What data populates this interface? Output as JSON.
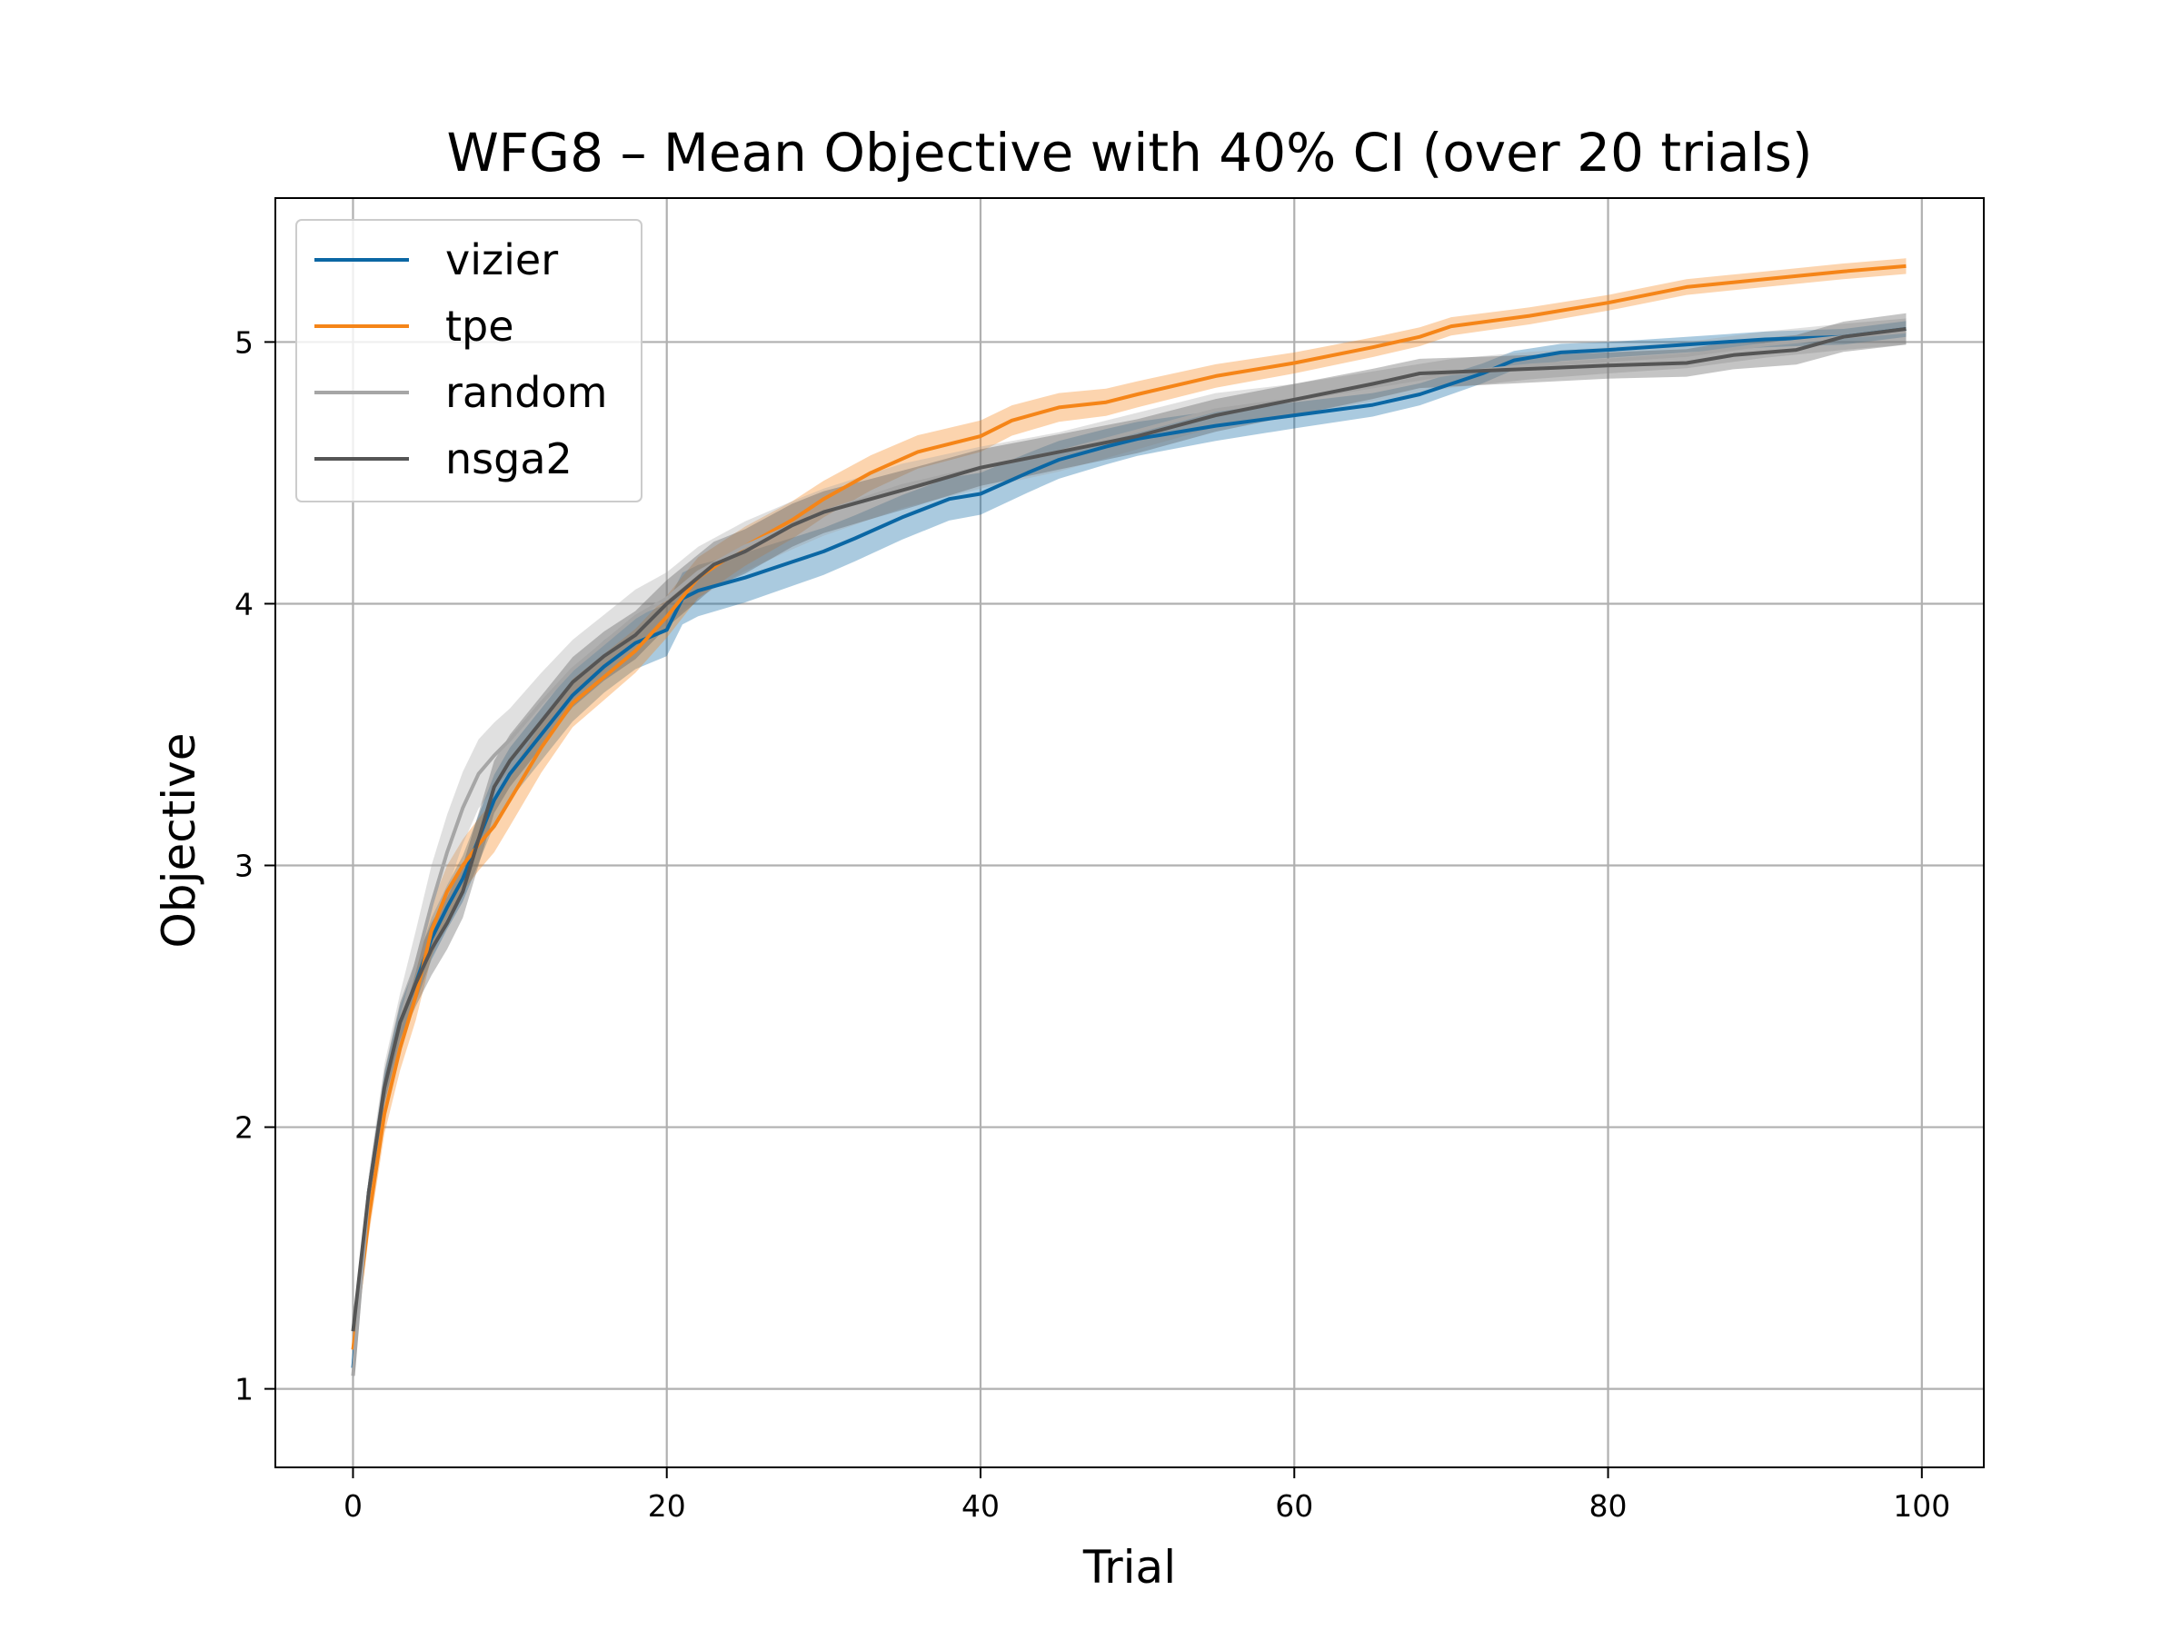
{
  "chart_data": {
    "type": "line",
    "title": "WFG8 – Mean Objective with 40% CI (over 20 trials)",
    "xlabel": "Trial",
    "ylabel": "Objective",
    "xlim": [
      -4.95,
      103.95
    ],
    "ylim": [
      0.7,
      5.55
    ],
    "xticks": [
      "0",
      "20",
      "40",
      "60",
      "80",
      "100"
    ],
    "yticks": [
      "1",
      "2",
      "3",
      "4",
      "5"
    ],
    "grid": true,
    "legend_position": "top-left",
    "band": "40% CI",
    "series": [
      {
        "name": "vizier",
        "color": "#0b67a4",
        "points": [
          [
            0,
            1.08
          ],
          [
            1,
            1.75
          ],
          [
            2,
            2.15
          ],
          [
            3,
            2.4
          ],
          [
            4,
            2.55
          ],
          [
            5,
            2.72
          ],
          [
            6,
            2.84
          ],
          [
            7,
            2.95
          ],
          [
            8,
            3.1
          ],
          [
            9,
            3.25
          ],
          [
            10,
            3.35
          ],
          [
            12,
            3.5
          ],
          [
            14,
            3.65
          ],
          [
            16,
            3.76
          ],
          [
            18,
            3.85
          ],
          [
            20,
            3.9
          ],
          [
            21,
            4.02
          ],
          [
            22,
            4.05
          ],
          [
            25,
            4.1
          ],
          [
            28,
            4.16
          ],
          [
            30,
            4.2
          ],
          [
            32,
            4.25
          ],
          [
            35,
            4.33
          ],
          [
            38,
            4.4
          ],
          [
            40,
            4.42
          ],
          [
            43,
            4.5
          ],
          [
            45,
            4.55
          ],
          [
            48,
            4.6
          ],
          [
            50,
            4.63
          ],
          [
            55,
            4.68
          ],
          [
            60,
            4.72
          ],
          [
            65,
            4.76
          ],
          [
            68,
            4.8
          ],
          [
            70,
            4.84
          ],
          [
            72,
            4.88
          ],
          [
            74,
            4.93
          ],
          [
            77,
            4.96
          ],
          [
            80,
            4.97
          ],
          [
            85,
            4.99
          ],
          [
            90,
            5.01
          ],
          [
            95,
            5.02
          ],
          [
            99,
            5.05
          ]
        ],
        "band_halfwidth": [
          [
            0,
            0.04
          ],
          [
            5,
            0.08
          ],
          [
            10,
            0.1
          ],
          [
            20,
            0.1
          ],
          [
            40,
            0.08
          ],
          [
            60,
            0.05
          ],
          [
            80,
            0.03
          ],
          [
            99,
            0.03
          ]
        ]
      },
      {
        "name": "tpe",
        "color": "#f58518",
        "points": [
          [
            0,
            1.15
          ],
          [
            1,
            1.65
          ],
          [
            2,
            2.05
          ],
          [
            3,
            2.3
          ],
          [
            4,
            2.5
          ],
          [
            5,
            2.75
          ],
          [
            6,
            2.9
          ],
          [
            7,
            3.0
          ],
          [
            8,
            3.08
          ],
          [
            9,
            3.15
          ],
          [
            10,
            3.25
          ],
          [
            12,
            3.45
          ],
          [
            14,
            3.62
          ],
          [
            16,
            3.72
          ],
          [
            18,
            3.82
          ],
          [
            20,
            3.95
          ],
          [
            22,
            4.1
          ],
          [
            25,
            4.22
          ],
          [
            28,
            4.32
          ],
          [
            30,
            4.4
          ],
          [
            33,
            4.5
          ],
          [
            36,
            4.58
          ],
          [
            40,
            4.64
          ],
          [
            42,
            4.7
          ],
          [
            45,
            4.75
          ],
          [
            48,
            4.77
          ],
          [
            50,
            4.8
          ],
          [
            55,
            4.87
          ],
          [
            60,
            4.92
          ],
          [
            65,
            4.98
          ],
          [
            68,
            5.02
          ],
          [
            70,
            5.06
          ],
          [
            75,
            5.1
          ],
          [
            80,
            5.15
          ],
          [
            85,
            5.21
          ],
          [
            90,
            5.24
          ],
          [
            95,
            5.27
          ],
          [
            99,
            5.29
          ]
        ],
        "band_halfwidth": [
          [
            0,
            0.06
          ],
          [
            5,
            0.1
          ],
          [
            10,
            0.1
          ],
          [
            20,
            0.08
          ],
          [
            40,
            0.06
          ],
          [
            60,
            0.04
          ],
          [
            80,
            0.03
          ],
          [
            99,
            0.03
          ]
        ]
      },
      {
        "name": "random",
        "color": "#a6a6a6",
        "points": [
          [
            0,
            1.05
          ],
          [
            1,
            1.75
          ],
          [
            2,
            2.15
          ],
          [
            3,
            2.4
          ],
          [
            4,
            2.62
          ],
          [
            5,
            2.85
          ],
          [
            6,
            3.05
          ],
          [
            7,
            3.22
          ],
          [
            8,
            3.35
          ],
          [
            9,
            3.42
          ],
          [
            10,
            3.48
          ],
          [
            12,
            3.62
          ],
          [
            14,
            3.75
          ],
          [
            16,
            3.85
          ],
          [
            18,
            3.95
          ],
          [
            20,
            4.02
          ],
          [
            22,
            4.12
          ],
          [
            25,
            4.22
          ],
          [
            28,
            4.3
          ],
          [
            30,
            4.35
          ],
          [
            35,
            4.45
          ],
          [
            40,
            4.52
          ],
          [
            45,
            4.58
          ],
          [
            50,
            4.66
          ],
          [
            55,
            4.74
          ],
          [
            60,
            4.78
          ],
          [
            65,
            4.83
          ],
          [
            70,
            4.88
          ],
          [
            75,
            4.91
          ],
          [
            80,
            4.93
          ],
          [
            85,
            4.95
          ],
          [
            90,
            4.99
          ],
          [
            95,
            5.02
          ],
          [
            99,
            5.04
          ]
        ],
        "band_halfwidth": [
          [
            0,
            0.05
          ],
          [
            5,
            0.15
          ],
          [
            10,
            0.12
          ],
          [
            20,
            0.1
          ],
          [
            40,
            0.08
          ],
          [
            60,
            0.06
          ],
          [
            80,
            0.05
          ],
          [
            99,
            0.05
          ]
        ]
      },
      {
        "name": "nsga2",
        "color": "#555555",
        "points": [
          [
            0,
            1.22
          ],
          [
            1,
            1.75
          ],
          [
            2,
            2.15
          ],
          [
            3,
            2.4
          ],
          [
            4,
            2.55
          ],
          [
            5,
            2.68
          ],
          [
            6,
            2.78
          ],
          [
            7,
            2.9
          ],
          [
            8,
            3.1
          ],
          [
            9,
            3.3
          ],
          [
            10,
            3.4
          ],
          [
            12,
            3.55
          ],
          [
            14,
            3.7
          ],
          [
            16,
            3.8
          ],
          [
            18,
            3.88
          ],
          [
            20,
            4.0
          ],
          [
            21,
            4.05
          ],
          [
            23,
            4.15
          ],
          [
            25,
            4.2
          ],
          [
            28,
            4.3
          ],
          [
            30,
            4.35
          ],
          [
            33,
            4.4
          ],
          [
            36,
            4.45
          ],
          [
            40,
            4.52
          ],
          [
            45,
            4.58
          ],
          [
            50,
            4.64
          ],
          [
            55,
            4.72
          ],
          [
            60,
            4.78
          ],
          [
            65,
            4.84
          ],
          [
            68,
            4.88
          ],
          [
            72,
            4.89
          ],
          [
            76,
            4.9
          ],
          [
            80,
            4.91
          ],
          [
            85,
            4.92
          ],
          [
            88,
            4.95
          ],
          [
            92,
            4.97
          ],
          [
            95,
            5.02
          ],
          [
            99,
            5.05
          ]
        ],
        "band_halfwidth": [
          [
            0,
            0.04
          ],
          [
            5,
            0.1
          ],
          [
            10,
            0.1
          ],
          [
            20,
            0.09
          ],
          [
            40,
            0.07
          ],
          [
            60,
            0.06
          ],
          [
            80,
            0.05
          ],
          [
            99,
            0.06
          ]
        ]
      }
    ]
  }
}
